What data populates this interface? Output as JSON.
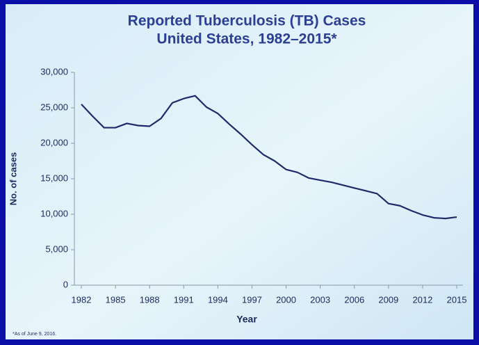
{
  "chart_data": {
    "type": "line",
    "title": "Reported Tuberculosis (TB) Cases",
    "subtitle": "United States, 1982–2015*",
    "x_label": "Year",
    "y_label": "No. of cases",
    "footnote": "*As of June 9, 2016.",
    "color": "#1f2a6b",
    "x": [
      1982,
      1983,
      1984,
      1985,
      1986,
      1987,
      1988,
      1989,
      1990,
      1991,
      1992,
      1993,
      1994,
      1995,
      1996,
      1997,
      1998,
      1999,
      2000,
      2001,
      2002,
      2003,
      2004,
      2005,
      2006,
      2007,
      2008,
      2009,
      2010,
      2011,
      2012,
      2013,
      2014,
      2015
    ],
    "values": [
      25500,
      23800,
      22200,
      22200,
      22800,
      22500,
      22400,
      23500,
      25700,
      26300,
      26700,
      25100,
      24200,
      22700,
      21300,
      19800,
      18400,
      17500,
      16300,
      15900,
      15100,
      14800,
      14500,
      14100,
      13700,
      13300,
      12900,
      11500,
      11200,
      10500,
      9900,
      9500,
      9400,
      9600
    ],
    "xlim": [
      1982,
      2015
    ],
    "xticks": [
      1982,
      1985,
      1988,
      1991,
      1994,
      1997,
      2000,
      2003,
      2006,
      2009,
      2012,
      2015
    ],
    "ylim": [
      0,
      30000
    ],
    "yticks": [
      0,
      {
        "value": 5000,
        "label": "5,000"
      },
      {
        "value": 10000,
        "label": "10,000"
      },
      {
        "value": 15000,
        "label": "15,000"
      },
      {
        "value": 20000,
        "label": "20,000"
      },
      {
        "value": 25000,
        "label": "25,000"
      },
      {
        "value": 30000,
        "label": "30,000"
      }
    ],
    "grid": false
  }
}
